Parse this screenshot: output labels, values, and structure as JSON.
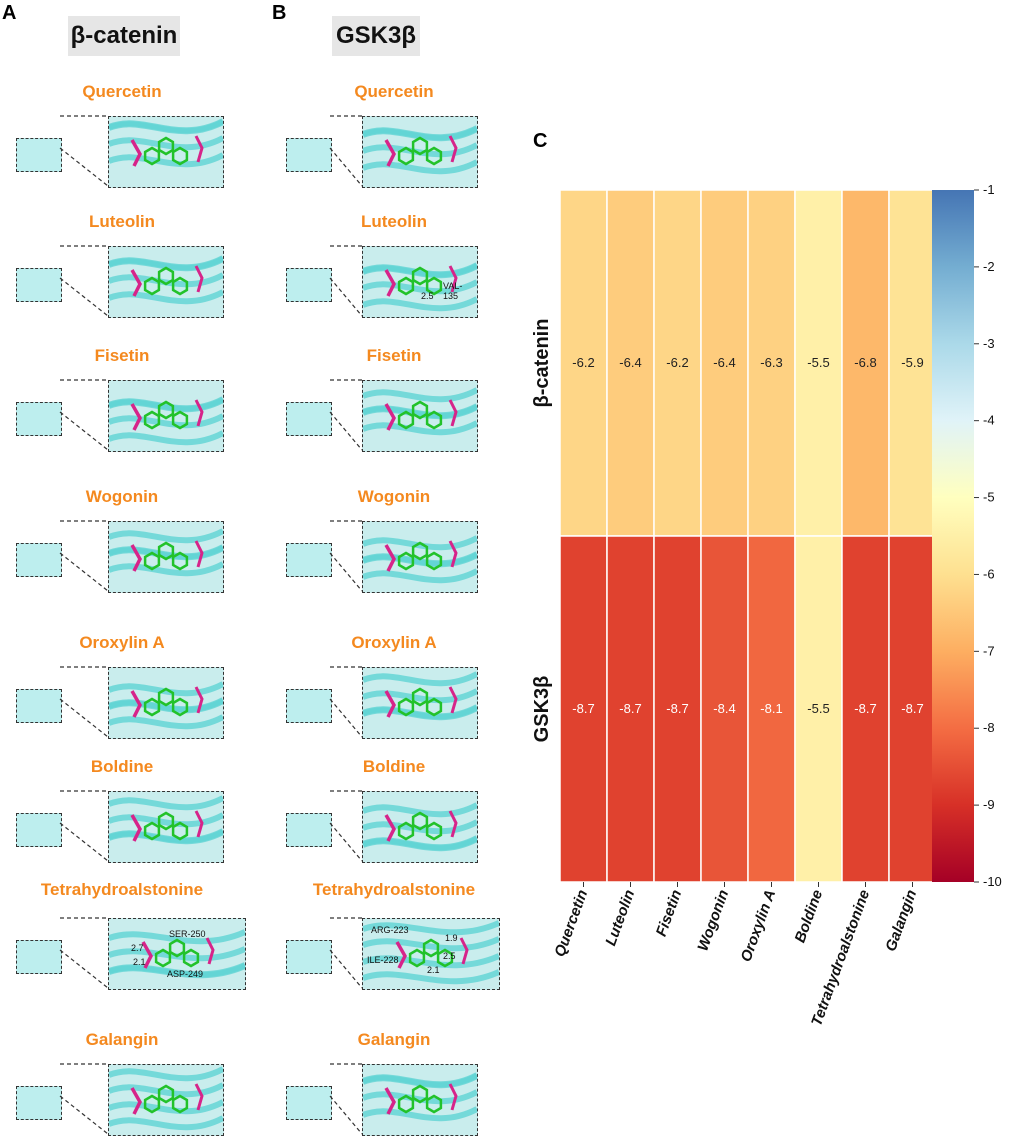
{
  "panels": {
    "a": "A",
    "b": "B",
    "c": "C"
  },
  "columns": {
    "left_title": "β-catenin",
    "right_title": "GSK3β"
  },
  "compounds": [
    "Quercetin",
    "Luteolin",
    "Fisetin",
    "Wogonin",
    "Oroxylin A",
    "Boldine",
    "Tetrahydroalstonine",
    "Galangin"
  ],
  "inset_labels": {
    "beta_tetra": [
      "SER-250",
      "ASP-249",
      "2.7",
      "2.1"
    ],
    "gsk_tetra": [
      "ARG-223",
      "ILE-228",
      "1.9",
      "2.5",
      "2.1"
    ],
    "gsk_luteolin": [
      "VAL-135",
      "2.5"
    ]
  },
  "chart_data": {
    "type": "heatmap",
    "title": "",
    "x_categories": [
      "Quercetin",
      "Luteolin",
      "Fisetin",
      "Wogonin",
      "Oroxylin A",
      "Boldine",
      "Tetrahydroalstonine",
      "Galangin"
    ],
    "y_categories": [
      "β-catenin",
      "GSK3β"
    ],
    "values": [
      [
        -6.2,
        -6.4,
        -6.2,
        -6.4,
        -6.3,
        -5.5,
        -6.8,
        -5.9
      ],
      [
        -8.7,
        -8.7,
        -8.7,
        -8.4,
        -8.1,
        -5.5,
        -8.7,
        -8.7
      ]
    ],
    "value_labels": [
      [
        "-6.2",
        "-6.4",
        "-6.2",
        "-6.4",
        "-6.3",
        "-5.5",
        "-6.8",
        "-5.9"
      ],
      [
        "-8.7",
        "-8.7",
        "-8.7",
        "-8.4",
        "-8.1",
        "-5.5",
        "-8.7",
        "-8.7"
      ]
    ],
    "colorbar": {
      "range": [
        -10,
        -1
      ],
      "ticks": [
        "-1",
        "-2",
        "-3",
        "-4",
        "-5",
        "-6",
        "-7",
        "-8",
        "-9",
        "-10"
      ],
      "colormap": "RdYlBu",
      "colors": [
        "#a50026",
        "#d73027",
        "#f46d43",
        "#fdae61",
        "#fee090",
        "#ffffbf",
        "#e0f3f8",
        "#abd9e9",
        "#74add1",
        "#4575b4"
      ]
    }
  }
}
